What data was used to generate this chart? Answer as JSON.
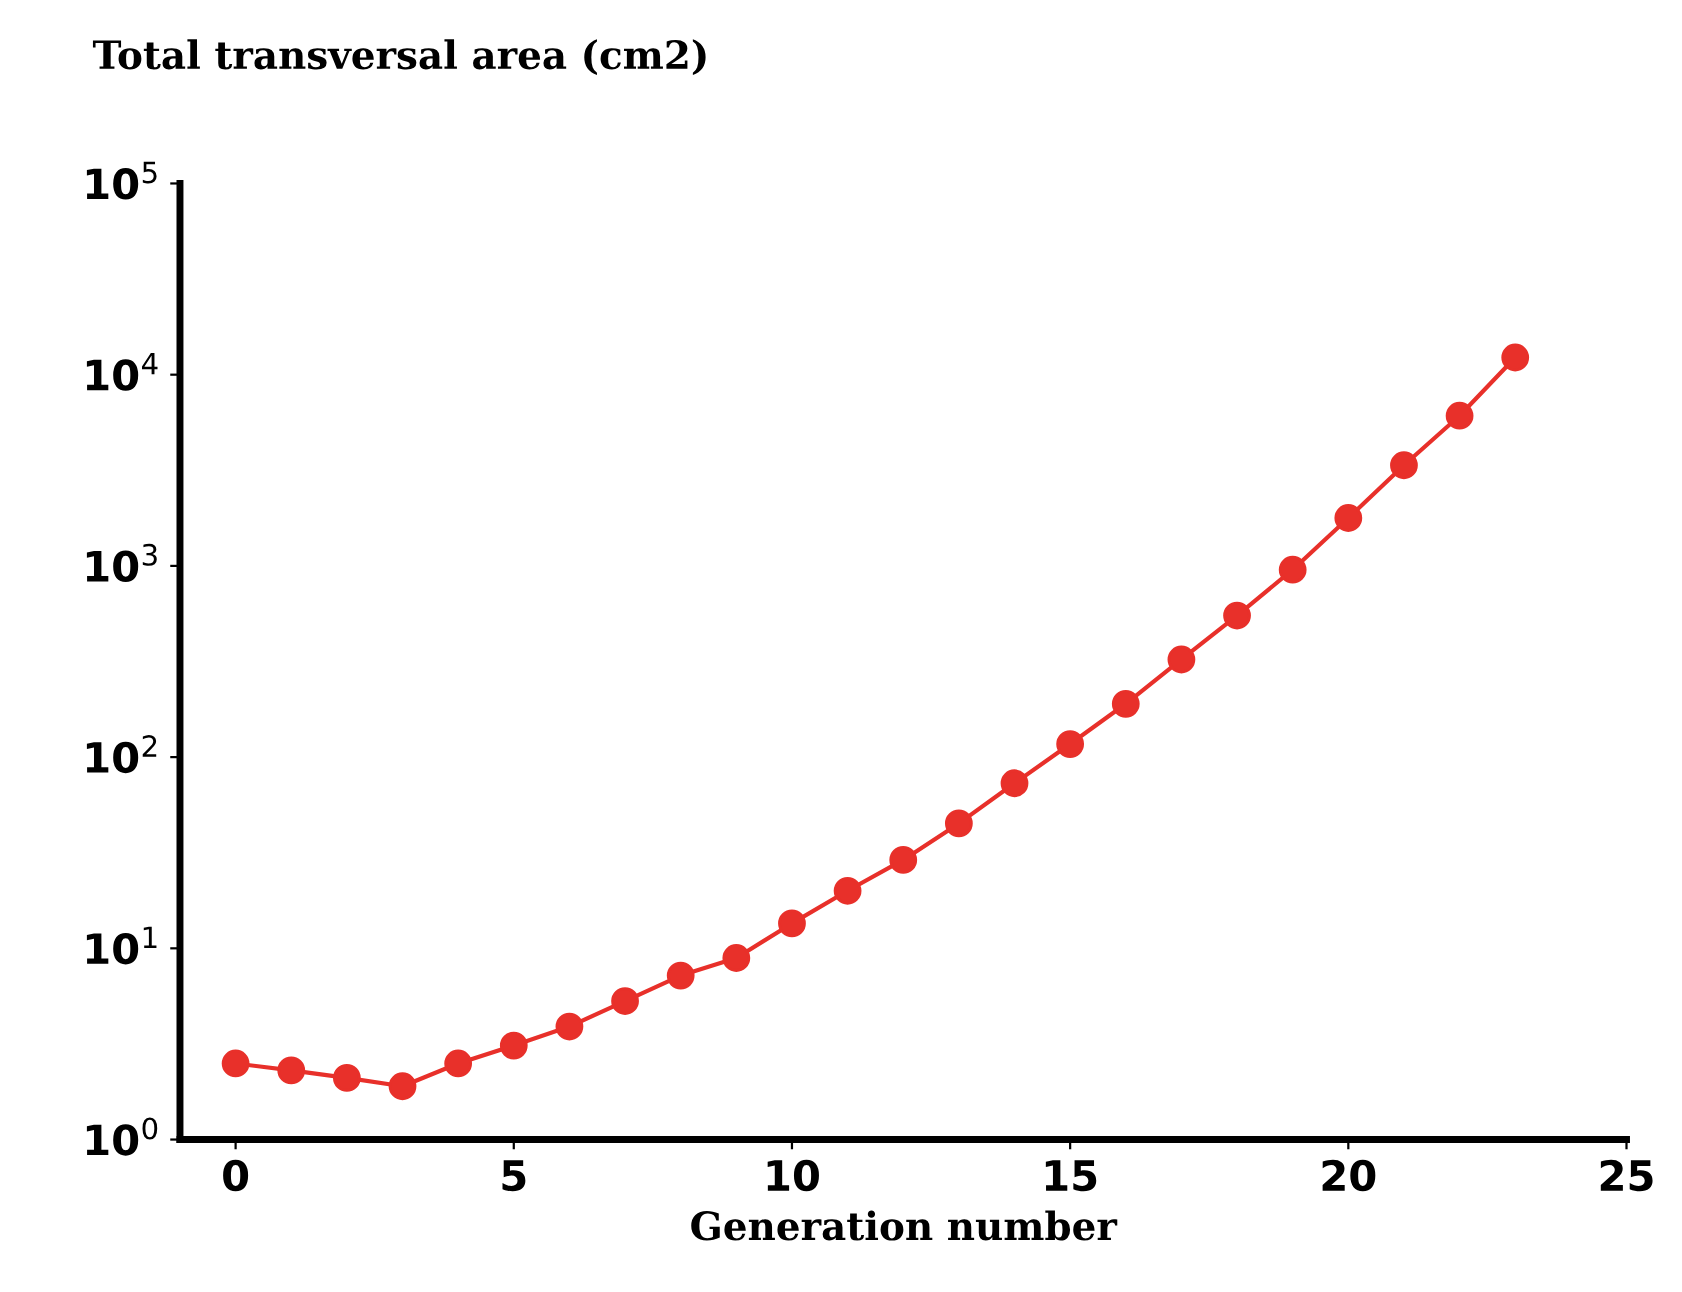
{
  "chart_data": {
    "type": "line",
    "title": "Total transversal area (cm2)",
    "xlabel": "Generation number",
    "x": [
      0,
      1,
      2,
      3,
      4,
      5,
      6,
      7,
      8,
      9,
      10,
      11,
      12,
      13,
      14,
      15,
      16,
      17,
      18,
      19,
      20,
      21,
      22,
      23
    ],
    "series": [
      {
        "color": "#e8302a",
        "values": [
          2.5,
          2.3,
          2.1,
          1.9,
          2.5,
          3.1,
          3.9,
          5.3,
          7.2,
          8.9,
          13.5,
          20,
          29,
          45,
          73,
          117,
          190,
          324,
          550,
          955,
          1780,
          3360,
          6100,
          12300
        ]
      }
    ],
    "marker": "circle",
    "line_style": "solid",
    "log": "y",
    "grid": false,
    "legend": false,
    "xlim": [
      -1,
      25
    ],
    "xticks": [
      0,
      5,
      10,
      15,
      20,
      25
    ],
    "ylim": [
      1,
      100000
    ],
    "yticks": [
      {
        "value": 1,
        "label": "10$^{0}$"
      },
      {
        "value": 10,
        "label": "10$^{1}$"
      },
      {
        "value": 100,
        "label": "10$^{2}$"
      },
      {
        "value": 1000,
        "label": "10$^{3}$"
      },
      {
        "value": 10000,
        "label": "10$^{4}$"
      },
      {
        "value": 100000,
        "label": "10$^{5}$"
      }
    ]
  }
}
